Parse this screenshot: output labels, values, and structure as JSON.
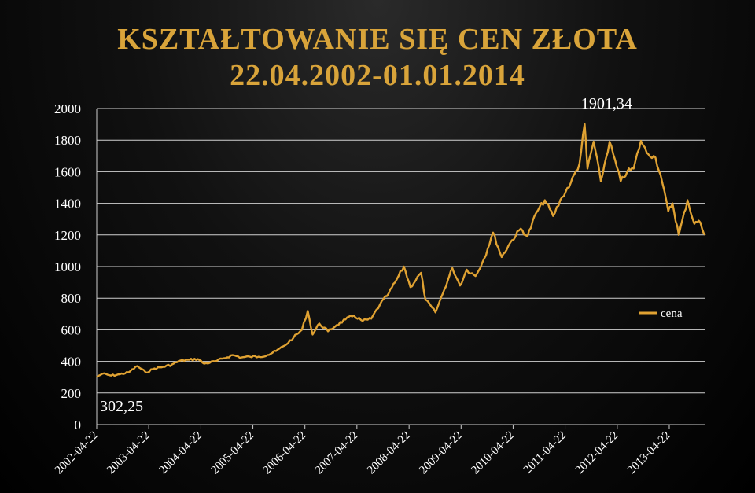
{
  "chart_data": {
    "type": "line",
    "title": "KSZTAŁTOWANIE SIĘ CEN ZŁOTA",
    "subtitle": "22.04.2002-01.01.2014",
    "ylim": [
      0,
      2000
    ],
    "yticks": [
      "0",
      "200",
      "400",
      "600",
      "800",
      "1000",
      "1200",
      "1400",
      "1600",
      "1800",
      "2000"
    ],
    "xlim": [
      "2002-04-22",
      "2014-01-01"
    ],
    "xticks": [
      "2002-04-22",
      "2003-04-22",
      "2004-04-22",
      "2005-04-22",
      "2006-04-22",
      "2007-04-22",
      "2008-04-22",
      "2009-04-22",
      "2010-04-22",
      "2011-04-22",
      "2012-04-22",
      "2013-04-22"
    ],
    "grid": true,
    "legend_position": "right",
    "line_color": "#e0a232",
    "series": [
      {
        "name": "cena",
        "points": [
          [
            "2002-04-22",
            302.25
          ],
          [
            "2002-06-01",
            322
          ],
          [
            "2002-08-01",
            310
          ],
          [
            "2002-10-01",
            318
          ],
          [
            "2002-12-01",
            330
          ],
          [
            "2003-02-01",
            370
          ],
          [
            "2003-04-01",
            330
          ],
          [
            "2003-06-01",
            355
          ],
          [
            "2003-08-01",
            365
          ],
          [
            "2003-10-01",
            380
          ],
          [
            "2003-12-01",
            405
          ],
          [
            "2004-02-01",
            410
          ],
          [
            "2004-04-01",
            415
          ],
          [
            "2004-05-15",
            385
          ],
          [
            "2004-08-01",
            400
          ],
          [
            "2004-10-01",
            420
          ],
          [
            "2004-12-01",
            440
          ],
          [
            "2005-02-01",
            425
          ],
          [
            "2005-04-01",
            430
          ],
          [
            "2005-06-01",
            430
          ],
          [
            "2005-08-01",
            440
          ],
          [
            "2005-10-01",
            465
          ],
          [
            "2005-12-01",
            500
          ],
          [
            "2006-02-01",
            550
          ],
          [
            "2006-04-01",
            600
          ],
          [
            "2006-05-12",
            720
          ],
          [
            "2006-06-15",
            570
          ],
          [
            "2006-08-01",
            640
          ],
          [
            "2006-10-01",
            590
          ],
          [
            "2006-12-01",
            630
          ],
          [
            "2007-02-01",
            665
          ],
          [
            "2007-04-01",
            690
          ],
          [
            "2007-06-01",
            655
          ],
          [
            "2007-08-01",
            670
          ],
          [
            "2007-10-01",
            760
          ],
          [
            "2007-12-01",
            830
          ],
          [
            "2008-01-15",
            900
          ],
          [
            "2008-03-17",
            1000
          ],
          [
            "2008-05-01",
            870
          ],
          [
            "2008-07-15",
            960
          ],
          [
            "2008-08-15",
            790
          ],
          [
            "2008-10-24",
            710
          ],
          [
            "2008-12-15",
            830
          ],
          [
            "2009-02-20",
            990
          ],
          [
            "2009-04-15",
            880
          ],
          [
            "2009-06-01",
            980
          ],
          [
            "2009-08-01",
            940
          ],
          [
            "2009-10-01",
            1050
          ],
          [
            "2009-12-02",
            1215
          ],
          [
            "2010-02-01",
            1060
          ],
          [
            "2010-04-01",
            1150
          ],
          [
            "2010-06-15",
            1240
          ],
          [
            "2010-08-01",
            1190
          ],
          [
            "2010-10-01",
            1340
          ],
          [
            "2010-12-01",
            1420
          ],
          [
            "2011-01-28",
            1320
          ],
          [
            "2011-04-01",
            1440
          ],
          [
            "2011-06-01",
            1530
          ],
          [
            "2011-08-01",
            1650
          ],
          [
            "2011-09-06",
            1901.34
          ],
          [
            "2011-09-26",
            1620
          ],
          [
            "2011-11-08",
            1790
          ],
          [
            "2011-12-29",
            1540
          ],
          [
            "2012-02-28",
            1790
          ],
          [
            "2012-05-16",
            1540
          ],
          [
            "2012-07-01",
            1600
          ],
          [
            "2012-08-15",
            1620
          ],
          [
            "2012-10-05",
            1795
          ],
          [
            "2012-11-15",
            1720
          ],
          [
            "2013-01-15",
            1690
          ],
          [
            "2013-02-20",
            1580
          ],
          [
            "2013-04-15",
            1350
          ],
          [
            "2013-05-15",
            1400
          ],
          [
            "2013-06-28",
            1200
          ],
          [
            "2013-08-28",
            1420
          ],
          [
            "2013-10-15",
            1270
          ],
          [
            "2013-11-15",
            1290
          ],
          [
            "2014-01-01",
            1200
          ]
        ]
      }
    ],
    "annotations": [
      {
        "text": "1901,34",
        "x": "2011-09-06",
        "y": 1901.34
      },
      {
        "text": "302,25",
        "x": "2002-04-22",
        "y": 302.25
      }
    ]
  }
}
